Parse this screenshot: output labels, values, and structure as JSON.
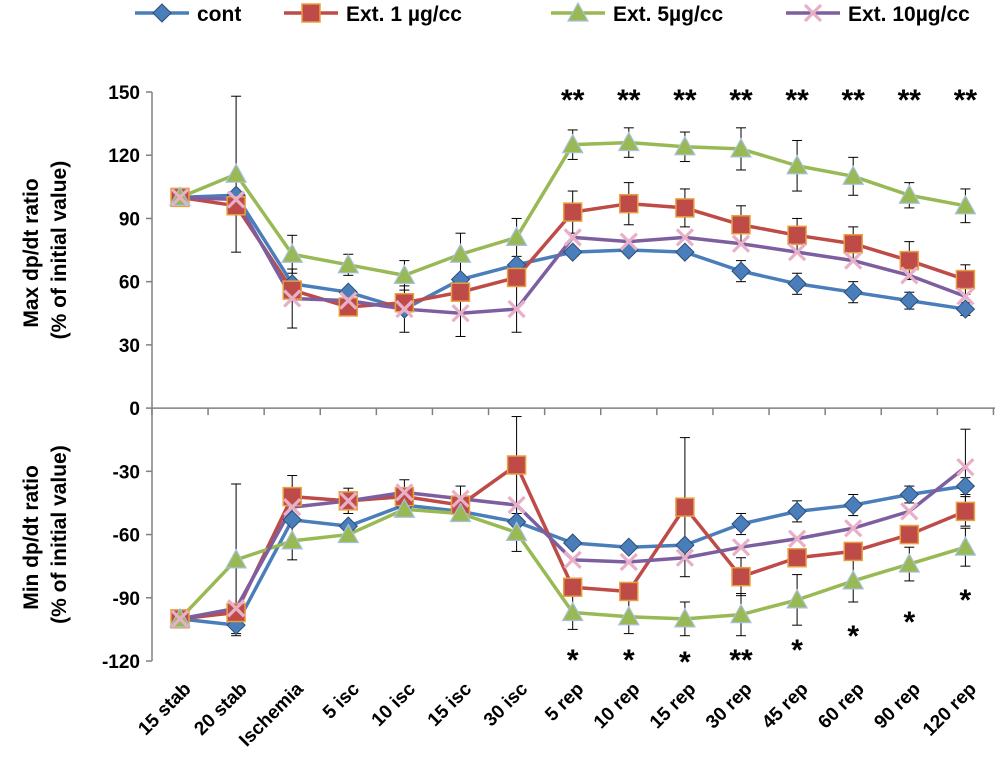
{
  "chart_data": {
    "type": "line",
    "categories": [
      "15 stab",
      "20 stab",
      "Ischemia",
      "5 isc",
      "10 isc",
      "15 isc",
      "30 isc",
      "5  rep",
      "10 rep",
      "15 rep",
      "30 rep",
      "45 rep",
      "60 rep",
      "90 rep",
      "120 rep"
    ],
    "ylabel_top_line1": "Max dp/dt ratio",
    "ylabel_top_line2": "(% of initial value)",
    "ylabel_bottom_line1": "Min dp/dt ratio",
    "ylabel_bottom_line2": "(% of initial value)",
    "ylim": [
      -120,
      150
    ],
    "yticks": [
      150,
      120,
      90,
      60,
      30,
      0,
      -30,
      -60,
      -90,
      -120
    ],
    "grid": false,
    "legend_position": "top",
    "series": [
      {
        "name": "cont",
        "color": "#4a7ebb",
        "marker": "diamond",
        "max_values": [
          100,
          101,
          59,
          55,
          47,
          61,
          68,
          74,
          75,
          74,
          65,
          59,
          55,
          51,
          47
        ],
        "max_errors": [
          0,
          0,
          0,
          0,
          0,
          0,
          0,
          0,
          0,
          0,
          5,
          5,
          5,
          4,
          3
        ],
        "min_values": [
          -100,
          -103,
          -53,
          -56,
          -46,
          -49,
          -54,
          -64,
          -66,
          -65,
          -55,
          -49,
          -46,
          -41,
          -37
        ],
        "min_errors": [
          0,
          4,
          0,
          0,
          0,
          0,
          0,
          0,
          0,
          0,
          5,
          5,
          5,
          4,
          4
        ]
      },
      {
        "name": "Ext. 1 µg/cc",
        "color": "#be4b48",
        "marker": "square",
        "max_values": [
          100,
          96,
          56,
          48,
          50,
          55,
          62,
          93,
          97,
          95,
          87,
          82,
          78,
          70,
          61
        ],
        "max_errors": [
          0,
          0,
          0,
          0,
          0,
          0,
          0,
          10,
          10,
          9,
          9,
          8,
          8,
          9,
          7
        ],
        "min_values": [
          -100,
          -97,
          -42,
          -44,
          -42,
          -46,
          -27,
          -85,
          -87,
          -47,
          -80,
          -71,
          -68,
          -60,
          -49
        ],
        "min_errors": [
          0,
          0,
          10,
          6,
          0,
          0,
          23,
          0,
          0,
          33,
          9,
          0,
          0,
          0,
          7
        ]
      },
      {
        "name": "Ext. 5µg/cc",
        "color": "#98b954",
        "marker": "triangle",
        "max_values": [
          100,
          111,
          73,
          68,
          63,
          73,
          81,
          125,
          126,
          124,
          123,
          115,
          110,
          101,
          96
        ],
        "max_errors": [
          0,
          37,
          9,
          5,
          7,
          10,
          9,
          7,
          7,
          7,
          10,
          12,
          9,
          6,
          8
        ],
        "min_values": [
          -100,
          -72,
          -63,
          -60,
          -48,
          -50,
          -59,
          -97,
          -99,
          -100,
          -98,
          -91,
          -82,
          -74,
          -66
        ],
        "min_errors": [
          0,
          36,
          9,
          0,
          0,
          0,
          9,
          8,
          8,
          8,
          10,
          12,
          10,
          8,
          9
        ]
      },
      {
        "name": "Ext. 10µg/cc",
        "color": "#7d5fa0",
        "marker": "x",
        "max_values": [
          100,
          99,
          52,
          51,
          47,
          45,
          47,
          81,
          79,
          81,
          78,
          74,
          70,
          63,
          53
        ],
        "max_errors": [
          0,
          0,
          14,
          0,
          11,
          11,
          11,
          0,
          0,
          0,
          0,
          0,
          0,
          0,
          0
        ],
        "min_values": [
          -100,
          -95,
          -47,
          -44,
          -40,
          -43,
          -46,
          -72,
          -73,
          -71,
          -66,
          -62,
          -57,
          -49,
          -28
        ],
        "min_errors": [
          0,
          0,
          0,
          0,
          6,
          6,
          0,
          0,
          0,
          0,
          0,
          0,
          0,
          0,
          18
        ]
      }
    ],
    "annotations_top": [
      {
        "category": "5  rep",
        "text": "**"
      },
      {
        "category": "10 rep",
        "text": "**"
      },
      {
        "category": "15 rep",
        "text": "**"
      },
      {
        "category": "30 rep",
        "text": "**"
      },
      {
        "category": "45 rep",
        "text": "**"
      },
      {
        "category": "60 rep",
        "text": "**"
      },
      {
        "category": "90 rep",
        "text": "**"
      },
      {
        "category": "120 rep",
        "text": "**"
      }
    ],
    "annotations_bottom": [
      {
        "category": "5  rep",
        "text": "*"
      },
      {
        "category": "10 rep",
        "text": "*"
      },
      {
        "category": "15 rep",
        "text": "*"
      },
      {
        "category": "30 rep",
        "text": "**"
      },
      {
        "category": "45 rep",
        "text": "*"
      },
      {
        "category": "60 rep",
        "text": "*"
      },
      {
        "category": "90 rep",
        "text": "*"
      },
      {
        "category": "120 rep",
        "text": "*"
      }
    ]
  }
}
